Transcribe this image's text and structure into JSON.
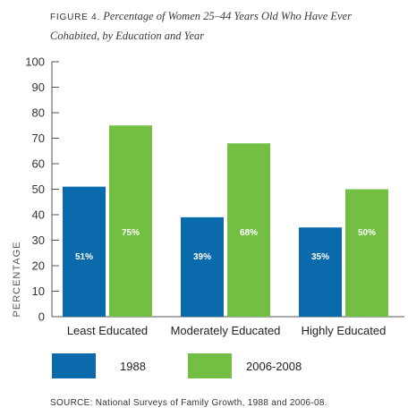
{
  "title": {
    "figure_label": "FIGURE 4.",
    "text": "Percentage of Women 25–44 Years Old Who Have Ever Cohabited, by Education and Year"
  },
  "source": "SOURCE: National Surveys of Family Growth, 1988 and 2006-08.",
  "colors": {
    "1988": "#0b6aab",
    "2006-2008": "#73bf44",
    "axis": "#555555",
    "bar_label": "#ffffff"
  },
  "chart_data": {
    "type": "bar",
    "categories": [
      "Least Educated",
      "Moderately Educated",
      "Highly Educated"
    ],
    "series": [
      {
        "name": "1988",
        "values": [
          51,
          39,
          35
        ],
        "labels": [
          "51%",
          "39%",
          "35%"
        ]
      },
      {
        "name": "2006-2008",
        "values": [
          75,
          68,
          50
        ],
        "labels": [
          "75%",
          "68%",
          "50%"
        ]
      }
    ],
    "ylabel": "PERCENTAGE",
    "xlabel": "",
    "ylim": [
      0,
      100
    ],
    "yticks": [
      0,
      10,
      20,
      30,
      40,
      50,
      60,
      70,
      80,
      90,
      100
    ],
    "grid": false,
    "legend": "bottom"
  }
}
